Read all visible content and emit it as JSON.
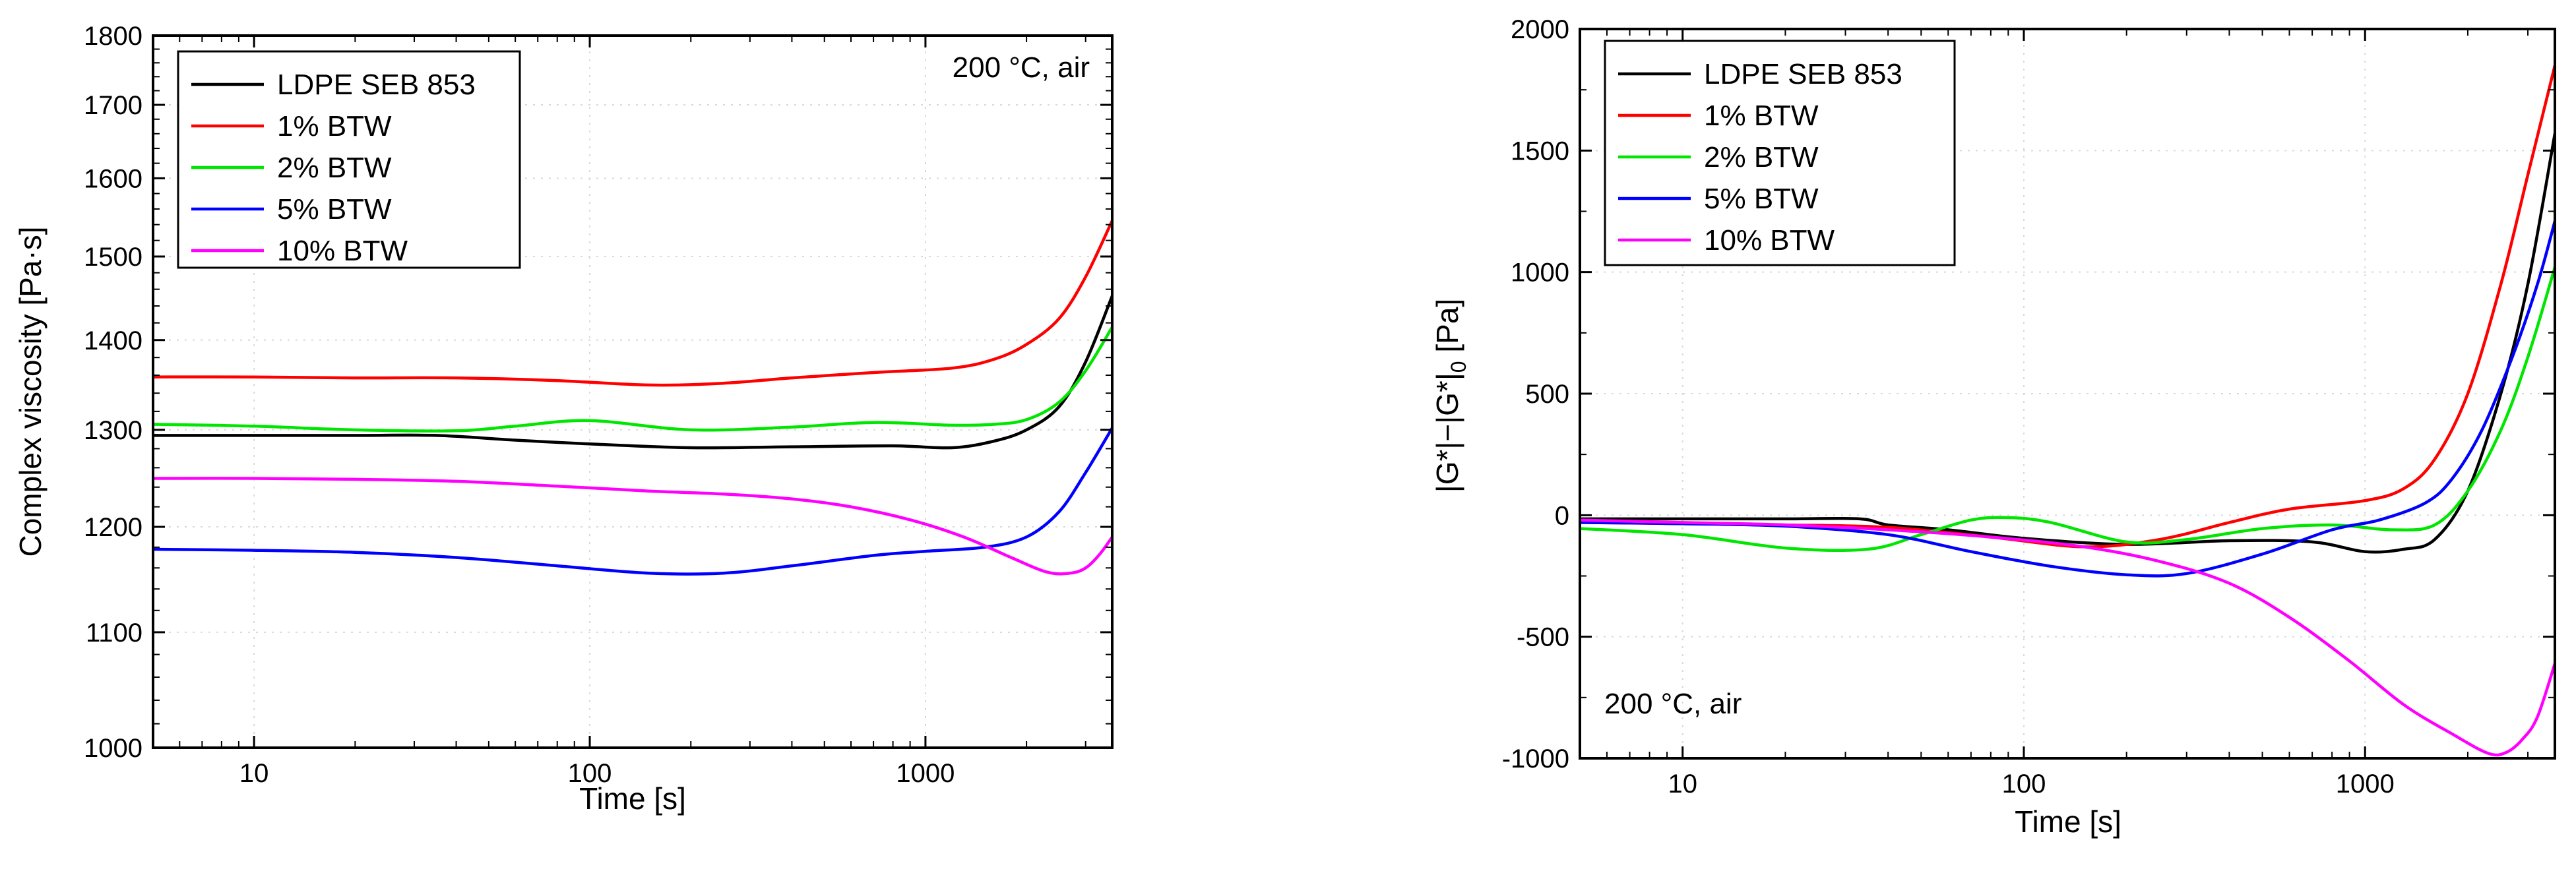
{
  "chart_data": [
    {
      "type": "line",
      "id": "viscosity",
      "title": "",
      "annotation": "200 °C, air",
      "xlabel": "Time [s]",
      "ylabel": "Complex viscosity [Pa·s]",
      "xscale": "log",
      "xlim": [
        5,
        3600
      ],
      "ylim": [
        1000,
        1800
      ],
      "yscale": "log",
      "xticks": [
        10,
        100,
        1000
      ],
      "xtick_labels": [
        "10",
        "100",
        "1000"
      ],
      "yticks": [
        1000,
        1100,
        1200,
        1300,
        1400,
        1500,
        1600,
        1700,
        1800
      ],
      "ytick_labels": [
        "1000",
        "1100",
        "1200",
        "1300",
        "1400",
        "1500",
        "1600",
        "1700",
        "1800"
      ],
      "grid": true,
      "legend_position": "top-left",
      "series": [
        {
          "name": "LDPE SEB 853",
          "color": "#000000",
          "x": [
            5,
            10,
            20,
            35,
            60,
            100,
            200,
            400,
            800,
            1200,
            1600,
            2000,
            2500,
            3000,
            3600
          ],
          "y": [
            1294,
            1294,
            1294,
            1294,
            1289,
            1285,
            1281,
            1282,
            1283,
            1281,
            1288,
            1300,
            1325,
            1375,
            1452
          ]
        },
        {
          "name": "1% BTW",
          "color": "#ff0000",
          "x": [
            5,
            10,
            20,
            40,
            80,
            150,
            250,
            400,
            700,
            1200,
            1600,
            2000,
            2500,
            3000,
            3600
          ],
          "y": [
            1358,
            1358,
            1357,
            1357,
            1354,
            1349,
            1351,
            1357,
            1363,
            1368,
            1378,
            1395,
            1425,
            1475,
            1545
          ]
        },
        {
          "name": "2% BTW",
          "color": "#00e600",
          "x": [
            5,
            10,
            20,
            40,
            60,
            100,
            200,
            400,
            700,
            1200,
            1600,
            2000,
            2500,
            3000,
            3600
          ],
          "y": [
            1306,
            1304,
            1300,
            1299,
            1304,
            1310,
            1300,
            1303,
            1308,
            1305,
            1306,
            1311,
            1330,
            1365,
            1415
          ]
        },
        {
          "name": "5% BTW",
          "color": "#0000ff",
          "x": [
            5,
            10,
            20,
            40,
            80,
            150,
            250,
            400,
            700,
            1000,
            1500,
            2000,
            2500,
            3000,
            3600
          ],
          "y": [
            1178,
            1177,
            1175,
            1170,
            1162,
            1155,
            1155,
            1162,
            1172,
            1176,
            1180,
            1190,
            1215,
            1255,
            1302
          ]
        },
        {
          "name": "10% BTW",
          "color": "#ff00ff",
          "x": [
            5,
            10,
            20,
            40,
            80,
            150,
            250,
            400,
            600,
            900,
            1300,
            1800,
            2300,
            2700,
            3000,
            3300,
            3600
          ],
          "y": [
            1249,
            1249,
            1248,
            1246,
            1241,
            1236,
            1233,
            1228,
            1220,
            1207,
            1190,
            1170,
            1156,
            1155,
            1160,
            1173,
            1190
          ]
        }
      ]
    },
    {
      "type": "line",
      "id": "modulus",
      "title": "",
      "annotation": "200 °C, air",
      "xlabel": "Time [s]",
      "ylabel": "|G*|−|G*|",
      "ylabel_subscript": "0",
      "ylabel_unit": " [Pa]",
      "xscale": "log",
      "xlim": [
        5,
        3600
      ],
      "ylim": [
        -1000,
        2000
      ],
      "xticks": [
        10,
        100,
        1000
      ],
      "xtick_labels": [
        "10",
        "100",
        "1000"
      ],
      "yticks": [
        -1000,
        -500,
        0,
        500,
        1000,
        1500,
        2000
      ],
      "ytick_labels": [
        "-1000",
        "-500",
        "0",
        "500",
        "1000",
        "1500",
        "2000"
      ],
      "grid": true,
      "legend_position": "top-left",
      "series": [
        {
          "name": "LDPE SEB 853",
          "color": "#000000",
          "x": [
            5,
            10,
            20,
            33,
            40,
            60,
            100,
            200,
            400,
            700,
            1000,
            1300,
            1600,
            2000,
            2500,
            3000,
            3600
          ],
          "y": [
            -15,
            -15,
            -15,
            -15,
            -40,
            -60,
            -95,
            -120,
            -105,
            -110,
            -150,
            -140,
            -100,
            100,
            500,
            950,
            1570
          ]
        },
        {
          "name": "1% BTW",
          "color": "#ff0000",
          "x": [
            5,
            10,
            20,
            40,
            80,
            150,
            250,
            400,
            600,
            1000,
            1300,
            1600,
            2000,
            2500,
            3000,
            3600
          ],
          "y": [
            -30,
            -35,
            -40,
            -50,
            -90,
            -130,
            -100,
            -30,
            25,
            60,
            110,
            230,
            500,
            950,
            1400,
            1850
          ]
        },
        {
          "name": "2% BTW",
          "color": "#00e600",
          "x": [
            5,
            10,
            20,
            35,
            50,
            70,
            90,
            120,
            200,
            300,
            500,
            800,
            1200,
            1600,
            2000,
            2500,
            3000,
            3600
          ],
          "y": [
            -55,
            -80,
            -135,
            -140,
            -80,
            -20,
            -10,
            -30,
            -110,
            -100,
            -55,
            -40,
            -60,
            -40,
            100,
            350,
            650,
            1020
          ]
        },
        {
          "name": "5% BTW",
          "color": "#0000ff",
          "x": [
            5,
            10,
            20,
            40,
            70,
            120,
            200,
            300,
            500,
            800,
            1100,
            1500,
            1800,
            2200,
            2700,
            3200,
            3600
          ],
          "y": [
            -30,
            -35,
            -45,
            -80,
            -150,
            -210,
            -245,
            -240,
            -160,
            -60,
            -20,
            50,
            150,
            350,
            650,
            950,
            1210
          ]
        },
        {
          "name": "10% BTW",
          "color": "#ff00ff",
          "x": [
            5,
            10,
            20,
            40,
            80,
            150,
            250,
            400,
            600,
            900,
            1300,
            1800,
            2300,
            2600,
            2900,
            3200,
            3600
          ],
          "y": [
            -20,
            -30,
            -40,
            -60,
            -90,
            -130,
            -190,
            -280,
            -420,
            -600,
            -780,
            -900,
            -980,
            -975,
            -920,
            -830,
            -610
          ]
        }
      ]
    }
  ]
}
